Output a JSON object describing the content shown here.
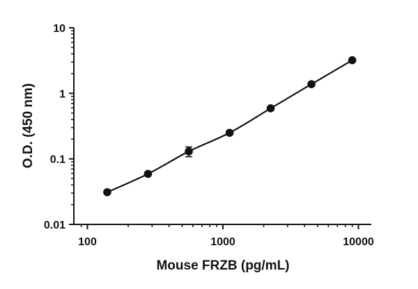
{
  "chart_data": {
    "type": "scatter",
    "title": "",
    "xlabel": "Mouse FRZB (pg/mL)",
    "ylabel": "O.D. (450 nm)",
    "x_scale": "log",
    "y_scale": "log",
    "xlim": [
      70,
      14000
    ],
    "ylim": [
      0.01,
      10
    ],
    "x_ticks": [
      {
        "value": 100,
        "label": "100"
      },
      {
        "value": 1000,
        "label": "1000"
      },
      {
        "value": 10000,
        "label": "10000"
      }
    ],
    "y_ticks": [
      {
        "value": 0.01,
        "label": "0.01"
      },
      {
        "value": 0.1,
        "label": "0.1"
      },
      {
        "value": 1,
        "label": "1"
      },
      {
        "value": 10,
        "label": "10"
      }
    ],
    "grid": false,
    "legend": "none",
    "series": [
      {
        "x": [
          140,
          280,
          560,
          1120,
          2250,
          4500,
          9000
        ],
        "y": [
          0.031,
          0.059,
          0.13,
          0.25,
          0.59,
          1.38,
          3.2
        ],
        "y_error": [
          0,
          0,
          0.022,
          0,
          0,
          0,
          0
        ],
        "fit_line": true
      }
    ]
  }
}
